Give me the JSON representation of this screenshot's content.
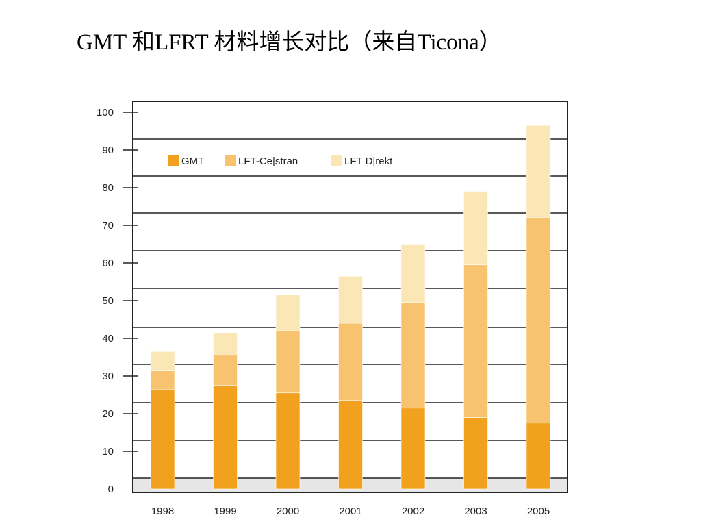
{
  "title": "GMT 和LFRT 材料增长对比（来自Ticona）",
  "colors": {
    "GMT": "#f2a11f",
    "LFT-Celstran": "#f7c36e",
    "LFT Direkt": "#fbe7b5",
    "frame": "#222222",
    "baseline_band": "#e6e6e6"
  },
  "chart_data": {
    "type": "bar",
    "stacked": true,
    "categories": [
      "1998",
      "1999",
      "2000",
      "2001",
      "2002",
      "2003",
      "2005"
    ],
    "series": [
      {
        "name": "GMT",
        "values": [
          26.5,
          27.5,
          25.5,
          23.5,
          21.5,
          19,
          17.5
        ]
      },
      {
        "name": "LFT-Ce|stran",
        "values": [
          5,
          8,
          16.5,
          20.5,
          28,
          40.5,
          54.5
        ]
      },
      {
        "name": "LFT D|rekt",
        "values": [
          5,
          6,
          9.5,
          12.5,
          15.5,
          19.5,
          24.5
        ]
      }
    ],
    "y_ticks": [
      "0",
      "10",
      "20",
      "30",
      "40",
      "50",
      "60",
      "70",
      "80",
      "90",
      "100"
    ],
    "ylim": [
      0,
      100
    ],
    "title": "",
    "xlabel": "",
    "ylabel": "",
    "legend_position": "top-left",
    "grid": true
  }
}
